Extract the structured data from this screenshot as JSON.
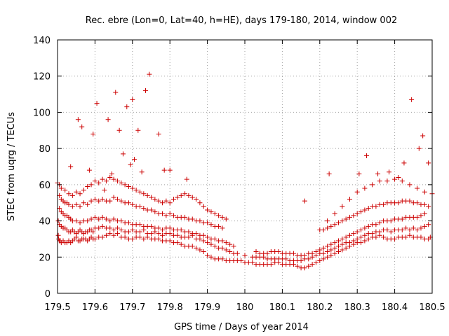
{
  "chart_data": {
    "type": "scatter",
    "title": "Rec. ebre (Lon=0, Lat=40, h=HE), days 179-180, 2014, window 002",
    "xlabel": "GPS time / Days of year 2014",
    "ylabel": "STEC from uqrg / TECUs",
    "xlim": [
      179.5,
      180.5
    ],
    "ylim": [
      0,
      140
    ],
    "xticks": [
      179.5,
      179.6,
      179.7,
      179.8,
      179.9,
      180.0,
      180.1,
      180.2,
      180.3,
      180.4,
      180.5
    ],
    "xtick_labels": [
      "179.5",
      "179.6",
      "179.7",
      "179.8",
      "179.9",
      "180",
      "180.1",
      "180.2",
      "180.3",
      "180.4",
      "180.5"
    ],
    "yticks": [
      0,
      20,
      40,
      60,
      80,
      100,
      120,
      140
    ],
    "ytick_labels": [
      "0",
      "20",
      "40",
      "60",
      "80",
      "100",
      "120",
      "140"
    ],
    "grid": true,
    "marker": "plus",
    "color": "#cc0000",
    "series": [
      {
        "x": [
          179.502,
          179.503,
          179.505,
          179.507,
          179.51,
          179.515,
          179.52,
          179.525,
          179.53,
          179.535,
          179.54,
          179.545,
          179.55,
          179.555,
          179.56,
          179.565,
          179.57,
          179.575,
          179.58,
          179.585,
          179.59,
          179.595,
          179.6,
          179.61,
          179.62,
          179.63,
          179.64,
          179.65,
          179.66,
          179.67,
          179.68,
          179.69,
          179.7,
          179.71,
          179.72,
          179.73,
          179.74,
          179.75,
          179.76,
          179.77,
          179.78,
          179.79,
          179.8,
          179.81,
          179.82,
          179.83,
          179.84,
          179.85,
          179.86,
          179.87,
          179.88,
          179.89,
          179.9,
          179.91,
          179.92,
          179.93,
          179.94,
          179.95,
          179.96,
          179.97,
          179.98,
          179.99,
          180.0,
          180.01,
          180.02,
          180.03,
          180.04,
          180.05,
          180.06,
          180.07,
          180.08,
          180.09,
          180.1,
          180.11,
          180.12,
          180.13,
          180.14,
          180.15,
          180.16,
          180.17,
          180.18,
          180.19,
          180.2,
          180.21,
          180.22,
          180.23,
          180.24,
          180.25,
          180.26,
          180.27,
          180.28,
          180.29,
          180.3,
          180.31,
          180.32,
          180.33,
          180.34,
          180.35,
          180.36,
          180.37,
          180.38,
          180.39,
          180.4,
          180.41,
          180.42,
          180.43,
          180.44,
          180.45,
          180.46,
          180.47,
          180.48,
          180.49,
          180.495
        ],
        "y": [
          32,
          30,
          29,
          29,
          28,
          29,
          28,
          28,
          29,
          28,
          29,
          30,
          31,
          29,
          29,
          30,
          30,
          30,
          29,
          30,
          31,
          30,
          30,
          31,
          31,
          32,
          33,
          32,
          33,
          31,
          31,
          30,
          30,
          31,
          31,
          30,
          31,
          30,
          30,
          30,
          29,
          29,
          29,
          28,
          28,
          27,
          26,
          26,
          26,
          25,
          24,
          23,
          21,
          20,
          19,
          19,
          19,
          18,
          18,
          18,
          18,
          18,
          17,
          17,
          17,
          16,
          16,
          16,
          16,
          16,
          17,
          17,
          16,
          16,
          16,
          16,
          15,
          14,
          14,
          15,
          16,
          17,
          18,
          19,
          20,
          21,
          22,
          23,
          24,
          25,
          26,
          27,
          28,
          28,
          29,
          30,
          31,
          31,
          32,
          31,
          30,
          30,
          30,
          31,
          31,
          31,
          32,
          31,
          31,
          31,
          30,
          30,
          31
        ]
      },
      {
        "x": [
          179.502,
          179.505,
          179.51,
          179.515,
          179.52,
          179.525,
          179.53,
          179.535,
          179.54,
          179.545,
          179.55,
          179.555,
          179.56,
          179.565,
          179.57,
          179.575,
          179.58,
          179.585,
          179.59,
          179.595,
          179.6,
          179.61,
          179.62,
          179.63,
          179.64,
          179.65,
          179.66,
          179.67,
          179.68,
          179.69,
          179.7,
          179.71,
          179.72,
          179.73,
          179.74,
          179.75,
          179.76,
          179.77,
          179.78,
          179.79,
          179.8,
          179.81,
          179.82,
          179.83,
          179.84,
          179.85,
          179.86,
          179.87,
          179.88,
          179.89,
          179.9,
          179.91,
          179.92,
          179.93,
          179.94,
          179.95,
          179.96,
          179.97,
          179.98,
          180.0,
          180.02,
          180.03,
          180.04,
          180.05,
          180.06,
          180.07,
          180.08,
          180.09,
          180.1,
          180.11,
          180.12,
          180.13,
          180.14,
          180.15,
          180.16,
          180.17,
          180.18,
          180.19,
          180.2,
          180.21,
          180.22,
          180.23,
          180.24,
          180.25,
          180.26,
          180.27,
          180.28,
          180.29,
          180.3,
          180.31,
          180.32,
          180.33,
          180.34,
          180.35,
          180.36,
          180.37,
          180.38,
          180.39,
          180.4,
          180.41,
          180.42,
          180.43,
          180.44,
          180.45,
          180.46,
          180.47,
          180.48,
          180.49
        ],
        "y": [
          40,
          38,
          37,
          36,
          36,
          35,
          34,
          34,
          35,
          34,
          33,
          34,
          35,
          34,
          33,
          34,
          34,
          35,
          35,
          34,
          36,
          36,
          37,
          36,
          36,
          35,
          36,
          35,
          34,
          34,
          35,
          34,
          34,
          35,
          33,
          33,
          34,
          33,
          32,
          33,
          33,
          32,
          32,
          31,
          31,
          31,
          32,
          30,
          30,
          29,
          28,
          27,
          26,
          25,
          25,
          24,
          23,
          22,
          22,
          21,
          20,
          20,
          20,
          20,
          19,
          19,
          19,
          19,
          19,
          19,
          18,
          18,
          18,
          18,
          19,
          19,
          20,
          21,
          22,
          22,
          23,
          24,
          25,
          26,
          27,
          28,
          28,
          29,
          30,
          31,
          32,
          33,
          33,
          34,
          34,
          35,
          35,
          34,
          35,
          35,
          35,
          36,
          35,
          36,
          35,
          36,
          37,
          38
        ]
      },
      {
        "x": [
          179.505,
          179.51,
          179.515,
          179.52,
          179.525,
          179.53,
          179.535,
          179.54,
          179.55,
          179.56,
          179.57,
          179.58,
          179.59,
          179.6,
          179.61,
          179.62,
          179.63,
          179.64,
          179.65,
          179.66,
          179.67,
          179.68,
          179.69,
          179.7,
          179.71,
          179.72,
          179.73,
          179.74,
          179.75,
          179.76,
          179.77,
          179.78,
          179.79,
          179.8,
          179.81,
          179.82,
          179.83,
          179.84,
          179.85,
          179.86,
          179.87,
          179.88,
          179.89,
          179.9,
          179.91,
          179.92,
          179.93,
          179.94,
          179.95,
          179.96,
          179.97,
          180.03,
          180.04,
          180.05,
          180.06,
          180.07,
          180.08,
          180.09,
          180.1,
          180.11,
          180.12,
          180.13,
          180.14,
          180.15,
          180.16,
          180.17,
          180.18,
          180.19,
          180.2,
          180.21,
          180.22,
          180.23,
          180.24,
          180.25,
          180.26,
          180.27,
          180.28,
          180.29,
          180.3,
          180.31,
          180.32,
          180.33,
          180.34,
          180.35,
          180.36,
          180.37,
          180.38,
          180.39,
          180.4,
          180.41,
          180.42,
          180.43,
          180.44,
          180.45,
          180.46,
          180.47,
          180.48
        ],
        "y": [
          47,
          45,
          44,
          43,
          43,
          42,
          41,
          40,
          40,
          39,
          40,
          40,
          41,
          42,
          41,
          42,
          41,
          40,
          41,
          40,
          40,
          39,
          39,
          38,
          38,
          38,
          37,
          37,
          37,
          36,
          36,
          35,
          36,
          36,
          35,
          35,
          35,
          34,
          34,
          33,
          33,
          32,
          32,
          31,
          30,
          30,
          29,
          29,
          28,
          27,
          26,
          23,
          22,
          22,
          22,
          23,
          23,
          23,
          22,
          22,
          22,
          22,
          21,
          21,
          21,
          22,
          22,
          23,
          24,
          25,
          26,
          27,
          28,
          29,
          30,
          31,
          32,
          33,
          34,
          35,
          36,
          37,
          38,
          38,
          39,
          40,
          40,
          40,
          41,
          41,
          41,
          42,
          42,
          42,
          42,
          43,
          44
        ]
      },
      {
        "x": [
          179.505,
          179.51,
          179.515,
          179.52,
          179.525,
          179.53,
          179.54,
          179.55,
          179.56,
          179.57,
          179.58,
          179.59,
          179.6,
          179.61,
          179.62,
          179.63,
          179.64,
          179.65,
          179.66,
          179.67,
          179.68,
          179.69,
          179.7,
          179.71,
          179.72,
          179.73,
          179.74,
          179.75,
          179.76,
          179.77,
          179.78,
          179.79,
          179.8,
          179.81,
          179.82,
          179.83,
          179.84,
          179.85,
          179.86,
          179.87,
          179.88,
          179.89,
          179.9,
          179.91,
          179.92,
          179.93,
          179.94,
          180.2,
          180.21,
          180.22,
          180.23,
          180.24,
          180.25,
          180.26,
          180.27,
          180.28,
          180.29,
          180.3,
          180.31,
          180.32,
          180.33,
          180.34,
          180.35,
          180.36,
          180.37,
          180.38,
          180.39,
          180.4,
          180.41,
          180.42,
          180.43,
          180.44,
          180.45,
          180.46,
          180.47,
          180.48,
          180.49
        ],
        "y": [
          54,
          52,
          51,
          50,
          50,
          49,
          48,
          49,
          48,
          50,
          49,
          51,
          52,
          51,
          52,
          51,
          51,
          53,
          52,
          51,
          50,
          50,
          49,
          48,
          48,
          47,
          46,
          46,
          45,
          44,
          44,
          43,
          44,
          43,
          42,
          42,
          42,
          41,
          41,
          40,
          40,
          39,
          39,
          38,
          37,
          37,
          36,
          35,
          35,
          36,
          37,
          38,
          39,
          40,
          41,
          42,
          43,
          44,
          45,
          46,
          47,
          48,
          48,
          49,
          49,
          50,
          50,
          50,
          50,
          51,
          51,
          51,
          50,
          50,
          49,
          49,
          48
        ]
      },
      {
        "x": [
          179.5,
          179.505,
          179.51,
          179.52,
          179.53,
          179.54,
          179.55,
          179.56,
          179.57,
          179.58,
          179.59,
          179.6,
          179.61,
          179.62,
          179.63,
          179.64,
          179.65,
          179.66,
          179.67,
          179.68,
          179.69,
          179.7,
          179.71,
          179.72,
          179.73,
          179.74,
          179.75,
          179.76,
          179.77,
          179.78,
          179.79,
          179.8,
          179.81,
          179.82,
          179.83,
          179.84,
          179.85,
          179.86,
          179.87,
          179.88,
          179.89,
          179.9,
          179.91,
          179.92,
          179.93,
          179.94,
          179.95,
          180.22,
          180.24,
          180.26,
          180.28,
          180.3,
          180.32,
          180.34,
          180.36,
          180.38,
          180.4,
          180.42,
          180.44,
          180.46,
          180.48,
          180.5
        ],
        "y": [
          61,
          60,
          58,
          57,
          55,
          54,
          56,
          55,
          57,
          59,
          60,
          62,
          61,
          63,
          62,
          64,
          63,
          62,
          61,
          60,
          59,
          58,
          57,
          56,
          55,
          54,
          53,
          52,
          51,
          50,
          51,
          50,
          52,
          53,
          54,
          55,
          54,
          53,
          52,
          50,
          48,
          46,
          45,
          44,
          43,
          42,
          41,
          40,
          44,
          48,
          52,
          56,
          58,
          60,
          62,
          62,
          63,
          62,
          60,
          58,
          56,
          55
        ]
      },
      {
        "x": [
          179.535,
          179.555,
          179.565,
          179.585,
          179.595,
          179.605,
          179.625,
          179.635,
          179.645,
          179.655,
          179.665,
          179.675,
          179.685,
          179.695,
          179.7,
          179.705,
          179.715,
          179.725,
          179.735,
          179.745,
          179.77,
          179.785,
          179.8,
          179.845,
          180.16,
          180.225,
          180.305,
          180.325,
          180.355,
          180.385,
          180.41,
          180.425,
          180.445,
          180.465,
          180.475,
          180.49
        ],
        "y": [
          70,
          96,
          92,
          68,
          88,
          105,
          57,
          96,
          66,
          111,
          90,
          77,
          103,
          71,
          107,
          74,
          90,
          67,
          112,
          121,
          88,
          68,
          68,
          63,
          51,
          66,
          66,
          76,
          66,
          67,
          64,
          72,
          107,
          80,
          87,
          72
        ]
      }
    ]
  }
}
